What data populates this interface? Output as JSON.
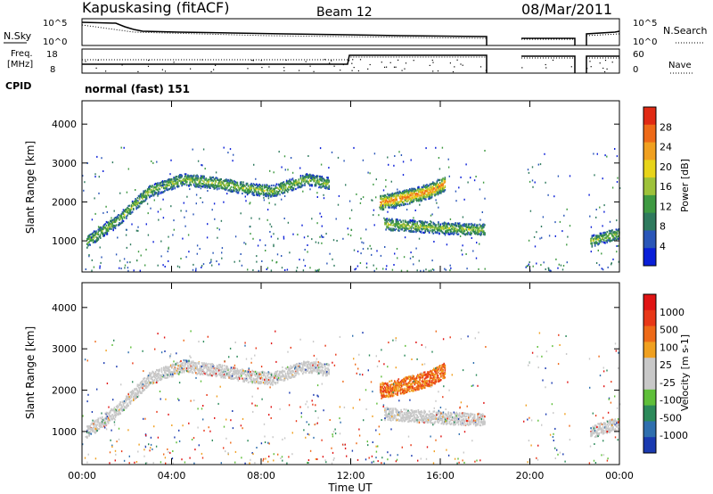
{
  "header": {
    "station": "Kapuskasing (fitACF)",
    "beam": "Beam 12",
    "date": "08/Mar/2011"
  },
  "top_panels": {
    "nsky_label": "N.Sky",
    "nsky_ticks": [
      "10^5",
      "10^0"
    ],
    "nsearch_label": "N.Search",
    "nsearch_ticks": [
      "10^5",
      "10^0"
    ],
    "freq_label_1": "Freq.",
    "freq_label_2": "[MHz]",
    "freq_ticks": [
      "18",
      "8"
    ],
    "nave_label": "Nave",
    "nave_ticks": [
      "60",
      "0"
    ],
    "cpid_label": "CPID",
    "cpid_value": "normal (fast) 151"
  },
  "colors": {
    "power_scale": [
      "#0a1fd8",
      "#2a56b8",
      "#2f7a5e",
      "#3f9a42",
      "#9ec23a",
      "#e8d41a",
      "#f0a020",
      "#ee6a18",
      "#e02a14"
    ],
    "velocity_scale": [
      "#1a3ab0",
      "#2f6fae",
      "#2c8a5a",
      "#5fbf3a",
      "#c8c8c8",
      "#c8c8c8",
      "#f0a020",
      "#ee6a18",
      "#e83818",
      "#e01414"
    ]
  },
  "chart_data": [
    {
      "type": "heatmap",
      "name": "power",
      "ylabel": "Slant Range [km]",
      "xlabel": "Time UT",
      "x_ticks": [
        "00:00",
        "04:00",
        "08:00",
        "12:00",
        "16:00",
        "20:00",
        "00:00"
      ],
      "x_tick_hours": [
        0,
        4,
        8,
        12,
        16,
        20,
        24
      ],
      "xlim": [
        0,
        24
      ],
      "y_ticks": [
        1000,
        2000,
        3000,
        4000
      ],
      "ylim": [
        200,
        4600
      ],
      "colorbar_label": "Power [dB]",
      "colorbar_ticks": [
        "28",
        "24",
        "20",
        "16",
        "12",
        "8",
        "4"
      ],
      "echo_bands": [
        {
          "t": [
            0.2,
            1.5,
            3.0,
            4.5,
            6.0,
            7.5,
            8.5,
            10.0,
            11.0
          ],
          "range": [
            1000,
            1500,
            2300,
            2600,
            2500,
            2350,
            2300,
            2600,
            2500
          ]
        },
        {
          "t": [
            13.3,
            14.5,
            15.5,
            16.2
          ],
          "range": [
            2000,
            2150,
            2300,
            2500
          ]
        },
        {
          "t": [
            13.5,
            16.0,
            18.0
          ],
          "range": [
            1450,
            1350,
            1300
          ]
        },
        {
          "t": [
            22.7,
            23.5,
            24.0
          ],
          "range": [
            1000,
            1150,
            1200
          ]
        }
      ]
    },
    {
      "type": "heatmap",
      "name": "velocity",
      "ylabel": "Slant Range [km]",
      "xlabel": "Time UT",
      "x_ticks": [
        "00:00",
        "04:00",
        "08:00",
        "12:00",
        "16:00",
        "20:00",
        "00:00"
      ],
      "x_tick_hours": [
        0,
        4,
        8,
        12,
        16,
        20,
        24
      ],
      "xlim": [
        0,
        24
      ],
      "y_ticks": [
        1000,
        2000,
        3000,
        4000
      ],
      "ylim": [
        200,
        4600
      ],
      "colorbar_label": "Velocity [m s-1]",
      "colorbar_ticks": [
        "1000",
        "500",
        "100",
        "25",
        "-25",
        "-100",
        "-500",
        "-1000"
      ],
      "echo_bands": [
        {
          "t": [
            0.2,
            1.5,
            3.0,
            4.5,
            6.0,
            7.5,
            8.5,
            10.0,
            11.0
          ],
          "range": [
            1000,
            1500,
            2300,
            2600,
            2500,
            2350,
            2300,
            2600,
            2500
          ]
        },
        {
          "t": [
            13.3,
            14.5,
            15.5,
            16.2
          ],
          "range": [
            2000,
            2150,
            2300,
            2500
          ]
        },
        {
          "t": [
            13.5,
            16.0,
            18.0
          ],
          "range": [
            1450,
            1350,
            1300
          ]
        },
        {
          "t": [
            22.7,
            23.5,
            24.0
          ],
          "range": [
            1000,
            1150,
            1200
          ]
        }
      ]
    }
  ]
}
